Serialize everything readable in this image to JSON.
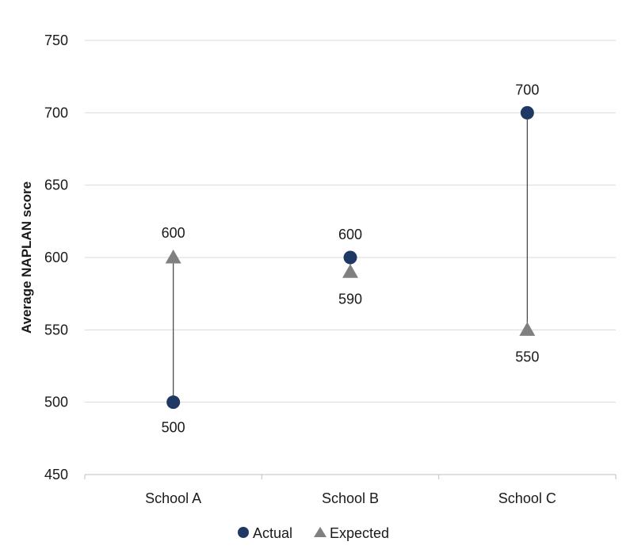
{
  "chart_data": {
    "type": "scatter",
    "title": "",
    "xlabel": "",
    "ylabel": "Average NAPLAN score",
    "ylim": [
      450,
      750
    ],
    "yticks": [
      450,
      500,
      550,
      600,
      650,
      700,
      750
    ],
    "categories": [
      "School A",
      "School B",
      "School C"
    ],
    "series": [
      {
        "name": "Actual",
        "marker": "circle",
        "color": "#1f3864",
        "values": [
          500,
          600,
          700
        ]
      },
      {
        "name": "Expected",
        "marker": "triangle",
        "color": "#808080",
        "values": [
          600,
          590,
          550
        ]
      }
    ],
    "connector_lines": true,
    "grid": true,
    "legend_position": "bottom"
  }
}
